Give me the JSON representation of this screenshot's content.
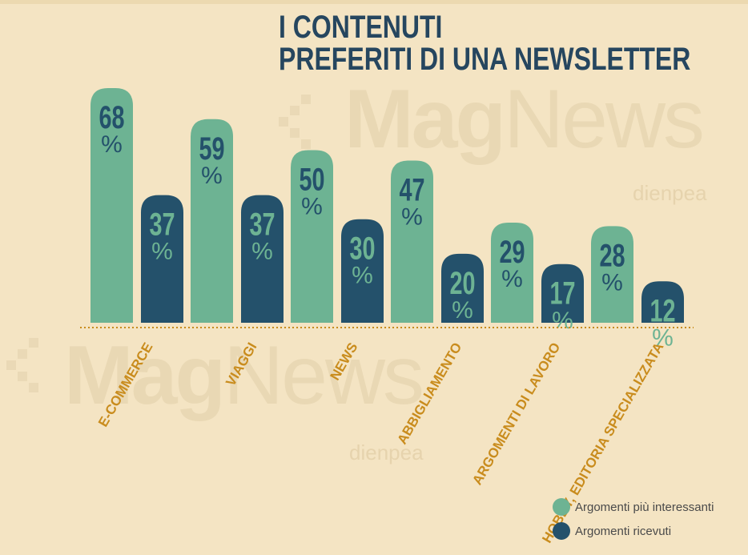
{
  "title_lines": [
    "I CONTENUTI",
    "PREFERITI DI UNA NEWSLETTER"
  ],
  "watermark": {
    "brand_bold": "Mag",
    "brand_light": "News",
    "sub": "dienpea"
  },
  "colors": {
    "background": "#f4e4c3",
    "series_interesting": "#6db393",
    "series_received": "#24516b",
    "category_label": "#c98c1d",
    "title": "#26465f",
    "baseline": "#c98c1d"
  },
  "chart_data": {
    "type": "bar",
    "title": "I CONTENUTI PREFERITI DI UNA NEWSLETTER",
    "categories": [
      "E-COMMERCE",
      "VIAGGI",
      "NEWS",
      "ABBIGLIAMENTO",
      "ARGOMENTI DI LAVORO",
      "HOBBY, EDITORIA SPECIALIZZATA"
    ],
    "series": [
      {
        "name": "Argomenti più interessanti",
        "values": [
          68,
          59,
          50,
          47,
          29,
          28
        ],
        "color": "#6db393"
      },
      {
        "name": "Argomenti ricevuti",
        "values": [
          37,
          37,
          30,
          20,
          17,
          12
        ],
        "color": "#24516b"
      }
    ],
    "value_suffix": "%",
    "xlabel": "",
    "ylabel": "",
    "ylim": [
      0,
      68
    ],
    "grid": false,
    "legend_position": "bottom-right"
  }
}
